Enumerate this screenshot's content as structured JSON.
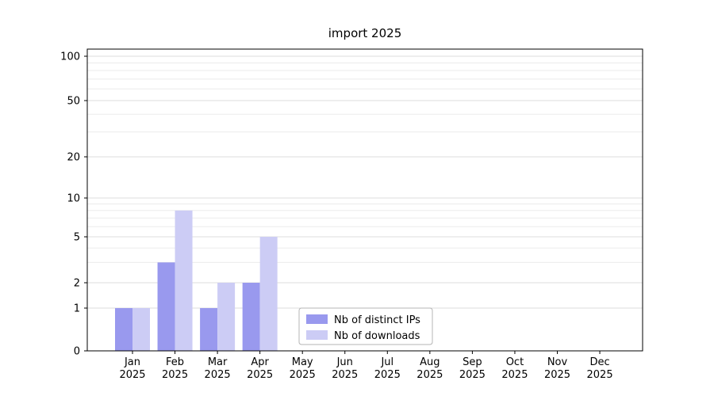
{
  "title": "import 2025",
  "chart_data": {
    "type": "bar",
    "title": "import 2025",
    "xlabel": "",
    "ylabel": "",
    "yscale": "symlog",
    "grid": true,
    "legend_position": "lower center",
    "ylim": [
      0,
      100
    ],
    "yticks": [
      0,
      1,
      2,
      5,
      10,
      20,
      50,
      100
    ],
    "minor_yticks": [
      3,
      4,
      6,
      7,
      8,
      9,
      30,
      40,
      60,
      70,
      80,
      90
    ],
    "categories": [
      "Jan 2025",
      "Feb 2025",
      "Mar 2025",
      "Apr 2025",
      "May 2025",
      "Jun 2025",
      "Jul 2025",
      "Aug 2025",
      "Sep 2025",
      "Oct 2025",
      "Nov 2025",
      "Dec 2025"
    ],
    "series": [
      {
        "name": "Nb of distinct IPs",
        "color": "#9999ee",
        "values": [
          1,
          3,
          1,
          2,
          0,
          0,
          0,
          0,
          0,
          0,
          0,
          0
        ]
      },
      {
        "name": "Nb of downloads",
        "color": "#ccccf5",
        "values": [
          1,
          8,
          2,
          5,
          0,
          0,
          0,
          0,
          0,
          0,
          0,
          0
        ]
      }
    ]
  }
}
